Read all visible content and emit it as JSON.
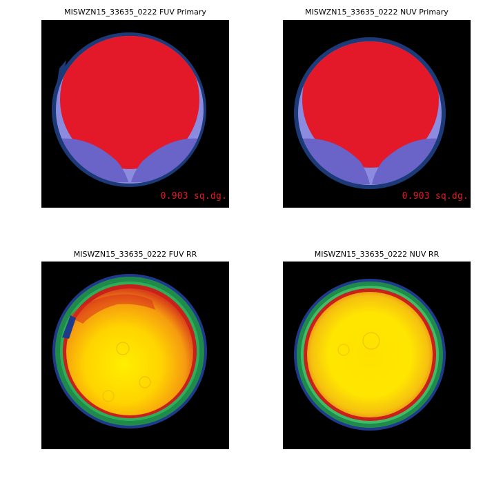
{
  "panels": {
    "fuv_primary": {
      "title": "MISWZN15_33635_0222 FUV Primary",
      "area_label": "0.903 sq.dg."
    },
    "nuv_primary": {
      "title": "MISWZN15_33635_0222 NUV Primary",
      "area_label": "0.903 sq.dg."
    },
    "fuv_rr": {
      "title": "MISWZN15_33635_0222 FUV RR"
    },
    "nuv_rr": {
      "title": "MISWZN15_33635_0222 NUV RR"
    }
  },
  "colors": {
    "background": "#000000",
    "primary_fill": "#e3192a",
    "ring_outer": "#1d3a78",
    "lower_region_light": "#8b8be0",
    "lower_region": "#6a64c8",
    "rr_edge_blue": "#1f3a8a",
    "rr_edge_green": "#1f8a4a",
    "rr_edge_red": "#c8201a",
    "rr_center_yellow": "#ffee00",
    "rr_orange": "#f07a10"
  }
}
